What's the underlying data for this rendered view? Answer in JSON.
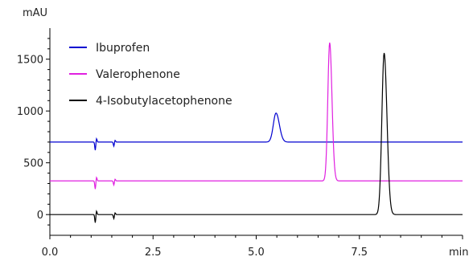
{
  "chart_data": {
    "type": "line",
    "title": "",
    "xlabel": "min",
    "ylabel": "mAU",
    "xlim": [
      0,
      10
    ],
    "ylim": [
      -200,
      1800
    ],
    "x_ticks": [
      0,
      2.5,
      5,
      7.5
    ],
    "x_tick_labels": [
      "0.0",
      "2.5",
      "5.0",
      "7.5"
    ],
    "y_ticks": [
      0,
      500,
      1000,
      1500
    ],
    "y_tick_labels": [
      "0",
      "500",
      "1000",
      "1500"
    ],
    "grid": false,
    "legend_position": "top-left",
    "series": [
      {
        "name": "Ibuprofen",
        "color": "#0000d0",
        "baseline": 700,
        "disturbances": [
          {
            "x": 1.1,
            "depth": -80
          },
          {
            "x": 1.55,
            "depth": -40
          }
        ],
        "peaks": [
          {
            "x": 5.48,
            "height": 280,
            "width": 0.065
          }
        ]
      },
      {
        "name": "Valerophenone",
        "color": "#e020e0",
        "baseline": 325,
        "disturbances": [
          {
            "x": 1.1,
            "depth": -80
          },
          {
            "x": 1.55,
            "depth": -40
          }
        ],
        "peaks": [
          {
            "x": 6.78,
            "height": 1335,
            "width": 0.045
          }
        ]
      },
      {
        "name": "4-Isobutylacetophenone",
        "color": "#000000",
        "baseline": 0,
        "disturbances": [
          {
            "x": 1.1,
            "depth": -80
          },
          {
            "x": 1.55,
            "depth": -40
          }
        ],
        "peaks": [
          {
            "x": 8.1,
            "height": 1560,
            "width": 0.055
          }
        ]
      }
    ]
  }
}
